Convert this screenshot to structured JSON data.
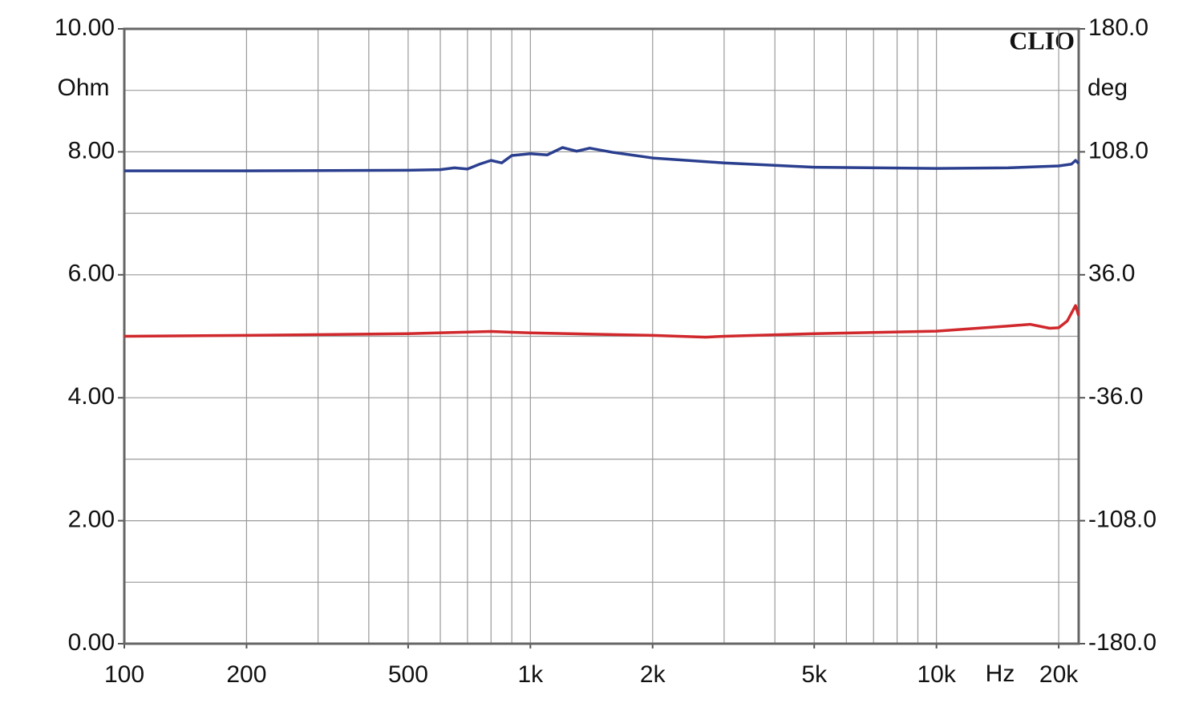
{
  "chart_data": {
    "type": "line",
    "watermark": "CLIO",
    "y_unit": "Ohm",
    "y2_unit": "deg",
    "x_unit": "Hz",
    "xscale": "log",
    "grid": true,
    "xlim": [
      100,
      22400
    ],
    "xticks": [
      100,
      200,
      500,
      {
        "value": 1000,
        "label": "1k"
      },
      {
        "value": 2000,
        "label": "2k"
      },
      {
        "value": 5000,
        "label": "5k"
      },
      {
        "value": 10000,
        "label": "10k"
      },
      {
        "value": 20000,
        "label": "20k"
      }
    ],
    "xgrid": [
      100,
      200,
      300,
      400,
      500,
      600,
      700,
      800,
      900,
      1000,
      2000,
      3000,
      4000,
      5000,
      6000,
      7000,
      8000,
      9000,
      10000,
      20000
    ],
    "ylim": [
      0,
      10
    ],
    "yticks": [
      {
        "value": 0,
        "label": "0.00"
      },
      {
        "value": 2,
        "label": "2.00"
      },
      {
        "value": 4,
        "label": "4.00"
      },
      {
        "value": 6,
        "label": "6.00"
      },
      {
        "value": 8,
        "label": "8.00"
      },
      {
        "value": 10,
        "label": "10.00"
      }
    ],
    "ygrid": [
      0,
      1,
      2,
      3,
      4,
      5,
      6,
      7,
      8,
      9,
      10
    ],
    "y2lim": [
      -180,
      180
    ],
    "y2ticks": [
      {
        "value": -180,
        "label": "-180.0"
      },
      {
        "value": -108,
        "label": "-108.0"
      },
      {
        "value": -36,
        "label": "-36.0"
      },
      {
        "value": 36,
        "label": "36.0"
      },
      {
        "value": 108,
        "label": "108.0"
      },
      {
        "value": 180,
        "label": "180.0"
      }
    ],
    "series": [
      {
        "color": "#2b3f8f",
        "axis": "y",
        "x": [
          100,
          200,
          500,
          600,
          650,
          700,
          750,
          800,
          850,
          900,
          1000,
          1100,
          1200,
          1300,
          1400,
          1600,
          2000,
          3000,
          5000,
          10000,
          15000,
          20000,
          21500,
          22000,
          22400
        ],
        "values": [
          7.69,
          7.69,
          7.7,
          7.71,
          7.74,
          7.72,
          7.8,
          7.86,
          7.82,
          7.94,
          7.97,
          7.95,
          8.07,
          8.01,
          8.06,
          7.99,
          7.9,
          7.82,
          7.75,
          7.73,
          7.74,
          7.77,
          7.8,
          7.86,
          7.81
        ]
      },
      {
        "color": "#d0282c",
        "axis": "y2",
        "x": [
          100,
          200,
          500,
          800,
          1000,
          2000,
          2700,
          3000,
          5000,
          10000,
          15000,
          17000,
          19000,
          20000,
          21000,
          22000,
          22400
        ],
        "values": [
          0,
          0.5,
          1.5,
          2.8,
          2,
          0.5,
          -0.5,
          0,
          1.5,
          3,
          6,
          7,
          4.7,
          5,
          9,
          18,
          12
        ]
      }
    ]
  }
}
